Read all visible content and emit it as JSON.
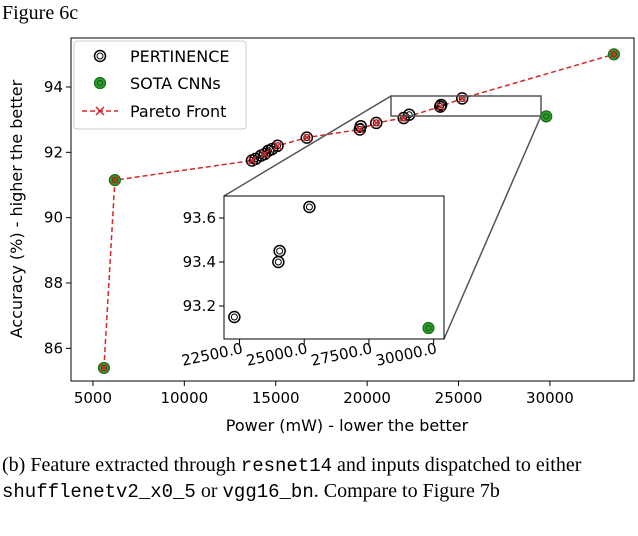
{
  "header": {
    "text": "Figure 6c"
  },
  "caption": {
    "part1": "(b) Feature extracted through ",
    "code1": "resnet14",
    "part2": " and inputs dispatched to either ",
    "code2": "shufflenetv2_x0_5",
    "part3": " or ",
    "code3": "vgg16_bn",
    "part4": ". Compare to Figure 7b"
  },
  "chart_data": {
    "type": "scatter",
    "title": "",
    "xlabel": "Power (mW) - lower the better",
    "ylabel": "Accuracy (%) - higher the better",
    "xlim": [
      3800,
      34600
    ],
    "ylim": [
      85.0,
      95.5
    ],
    "xticks": [
      5000,
      10000,
      15000,
      20000,
      25000,
      30000
    ],
    "yticks": [
      86,
      88,
      90,
      92,
      94
    ],
    "grid": false,
    "legend_position": "top-left",
    "series": [
      {
        "name": "PERTINENCE",
        "color": "#000000",
        "points": [
          [
            13700,
            91.75
          ],
          [
            13900,
            91.8
          ],
          [
            14200,
            91.9
          ],
          [
            14400,
            91.95
          ],
          [
            14600,
            92.05
          ],
          [
            14800,
            92.1
          ],
          [
            15100,
            92.2
          ],
          [
            16700,
            92.45
          ],
          [
            19600,
            92.7
          ],
          [
            19650,
            92.8
          ],
          [
            20500,
            92.9
          ],
          [
            22000,
            93.05
          ],
          [
            22300,
            93.15
          ],
          [
            24000,
            93.4
          ],
          [
            24050,
            93.45
          ],
          [
            25200,
            93.65
          ]
        ]
      },
      {
        "name": "SOTA CNNs",
        "color": "#2ca02c",
        "points": [
          [
            5600,
            85.4
          ],
          [
            6200,
            91.15
          ],
          [
            29800,
            93.1
          ],
          [
            33500,
            95.0
          ]
        ]
      },
      {
        "name": "Pareto Front",
        "color": "#d62728",
        "points": [
          [
            5600,
            85.4
          ],
          [
            6200,
            91.15
          ],
          [
            13700,
            91.75
          ],
          [
            14400,
            91.95
          ],
          [
            15100,
            92.2
          ],
          [
            16700,
            92.45
          ],
          [
            19600,
            92.7
          ],
          [
            20500,
            92.9
          ],
          [
            22000,
            93.05
          ],
          [
            24000,
            93.4
          ],
          [
            25200,
            93.65
          ],
          [
            33500,
            95.0
          ]
        ]
      }
    ],
    "inset": {
      "xlim": [
        21900,
        30400
      ],
      "ylim": [
        93.05,
        93.7
      ],
      "xticks": [
        22500.0,
        25000.0,
        27500.0,
        30000.0
      ],
      "xtick_labels": [
        "22500.0",
        "25000.0",
        "27500.0",
        "30000.0"
      ],
      "yticks": [
        93.2,
        93.4,
        93.6
      ],
      "ytick_labels": [
        "93.2",
        "93.4",
        "93.6"
      ],
      "pertinence_points": [
        [
          22300,
          93.15
        ],
        [
          24000,
          93.4
        ],
        [
          24050,
          93.45
        ],
        [
          25200,
          93.65
        ]
      ],
      "sota_points": [
        [
          29800,
          93.1
        ]
      ]
    }
  }
}
